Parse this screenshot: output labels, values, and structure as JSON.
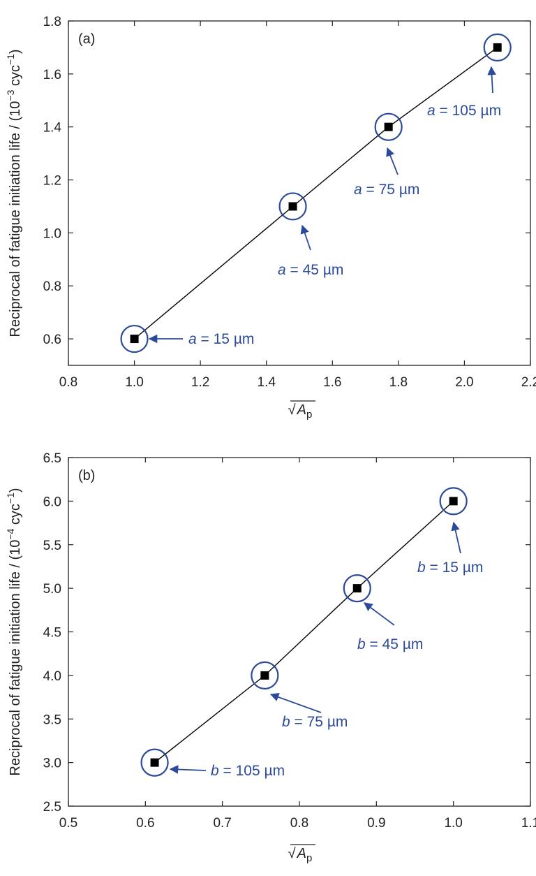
{
  "colors": {
    "annotation": "#2b4a9a",
    "line": "#000000",
    "marker": "#000000",
    "axis": "#222222"
  },
  "chart_data": [
    {
      "type": "scatter",
      "panel_label": "(a)",
      "xlabel_radical": "√",
      "xlabel_symbol": "A",
      "xlabel_sub": "p",
      "ylabel_main": "Reciprocal of fatigue initiation life / (10",
      "ylabel_exp": "−3",
      "ylabel_unit": " cyc",
      "ylabel_unit_exp": "−1",
      "ylabel_close": ")",
      "xlim": [
        0.8,
        2.2
      ],
      "ylim": [
        0.5,
        1.8
      ],
      "xticks": [
        0.8,
        1.0,
        1.2,
        1.4,
        1.6,
        1.8,
        2.0,
        2.2
      ],
      "xtick_labels": [
        "0.8",
        "1.0",
        "1.2",
        "1.4",
        "1.6",
        "1.8",
        "2.0",
        "2.2"
      ],
      "yticks": [
        0.6,
        0.8,
        1.0,
        1.2,
        1.4,
        1.6,
        1.8
      ],
      "ytick_labels": [
        "0.6",
        "0.8",
        "1.0",
        "1.2",
        "1.4",
        "1.6",
        "1.8"
      ],
      "marker": "square",
      "fit_line": true,
      "grid": false,
      "points": [
        {
          "x": 1.0,
          "y": 0.6,
          "var": "a",
          "label": " = 15 µm"
        },
        {
          "x": 1.48,
          "y": 1.1,
          "var": "a",
          "label": " = 45 µm"
        },
        {
          "x": 1.77,
          "y": 1.4,
          "var": "a",
          "label": " = 75 µm"
        },
        {
          "x": 2.1,
          "y": 1.7,
          "var": "a",
          "label": " = 105 µm"
        }
      ]
    },
    {
      "type": "scatter",
      "panel_label": "(b)",
      "xlabel_radical": "√",
      "xlabel_symbol": "A",
      "xlabel_sub": "p",
      "ylabel_main": "Reciprocal of fatigue initiation life / (10",
      "ylabel_exp": "−4",
      "ylabel_unit": " cyc",
      "ylabel_unit_exp": "−1",
      "ylabel_close": ")",
      "xlim": [
        0.5,
        1.1
      ],
      "ylim": [
        2.5,
        6.5
      ],
      "xticks": [
        0.5,
        0.6,
        0.7,
        0.8,
        0.9,
        1.0,
        1.1
      ],
      "xtick_labels": [
        "0.5",
        "0.6",
        "0.7",
        "0.8",
        "0.9",
        "1.0",
        "1.1"
      ],
      "yticks": [
        2.5,
        3.0,
        3.5,
        4.0,
        4.5,
        5.0,
        5.5,
        6.0,
        6.5
      ],
      "ytick_labels": [
        "2.5",
        "3.0",
        "3.5",
        "4.0",
        "4.5",
        "5.0",
        "5.5",
        "6.0",
        "6.5"
      ],
      "marker": "square",
      "fit_line": true,
      "grid": false,
      "points": [
        {
          "x": 1.0,
          "y": 6.0,
          "var": "b",
          "label": " = 15 µm"
        },
        {
          "x": 0.875,
          "y": 5.0,
          "var": "b",
          "label": " = 45 µm"
        },
        {
          "x": 0.755,
          "y": 4.0,
          "var": "b",
          "label": " = 75 µm"
        },
        {
          "x": 0.612,
          "y": 3.0,
          "var": "b",
          "label": " = 105 µm"
        }
      ]
    }
  ]
}
